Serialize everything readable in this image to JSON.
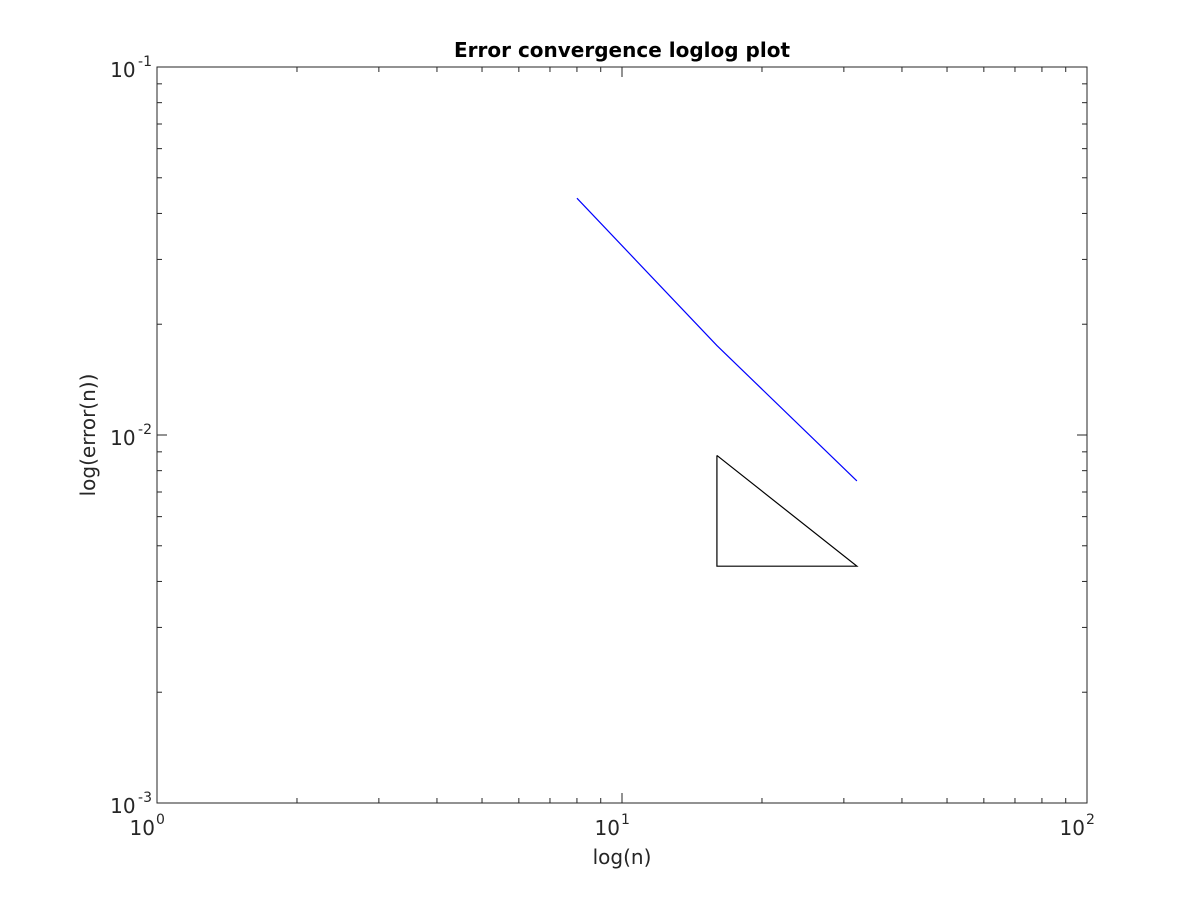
{
  "chart_data": {
    "type": "line",
    "title": "Error convergence loglog plot",
    "xlabel": "log(n)",
    "ylabel": "log(error(n))",
    "xscale": "log",
    "yscale": "log",
    "xlim": [
      1,
      100
    ],
    "ylim": [
      0.001,
      0.1
    ],
    "grid": false,
    "box": true,
    "x_ticks": [
      {
        "value": 1,
        "base": "10",
        "exp": "0"
      },
      {
        "value": 10,
        "base": "10",
        "exp": "1"
      },
      {
        "value": 100,
        "base": "10",
        "exp": "2"
      }
    ],
    "y_ticks": [
      {
        "value": 0.001,
        "base": "10",
        "exp": "-3"
      },
      {
        "value": 0.01,
        "base": "10",
        "exp": "-2"
      },
      {
        "value": 0.1,
        "base": "10",
        "exp": "-1"
      }
    ],
    "series": [
      {
        "color": "#0000ff",
        "x": [
          8,
          16,
          32
        ],
        "y": [
          0.044,
          0.0175,
          0.0075
        ]
      },
      {
        "color": "#000000",
        "x": [
          16,
          16,
          32,
          16
        ],
        "y": [
          0.0088,
          0.0044,
          0.0044,
          0.0088
        ]
      }
    ]
  }
}
